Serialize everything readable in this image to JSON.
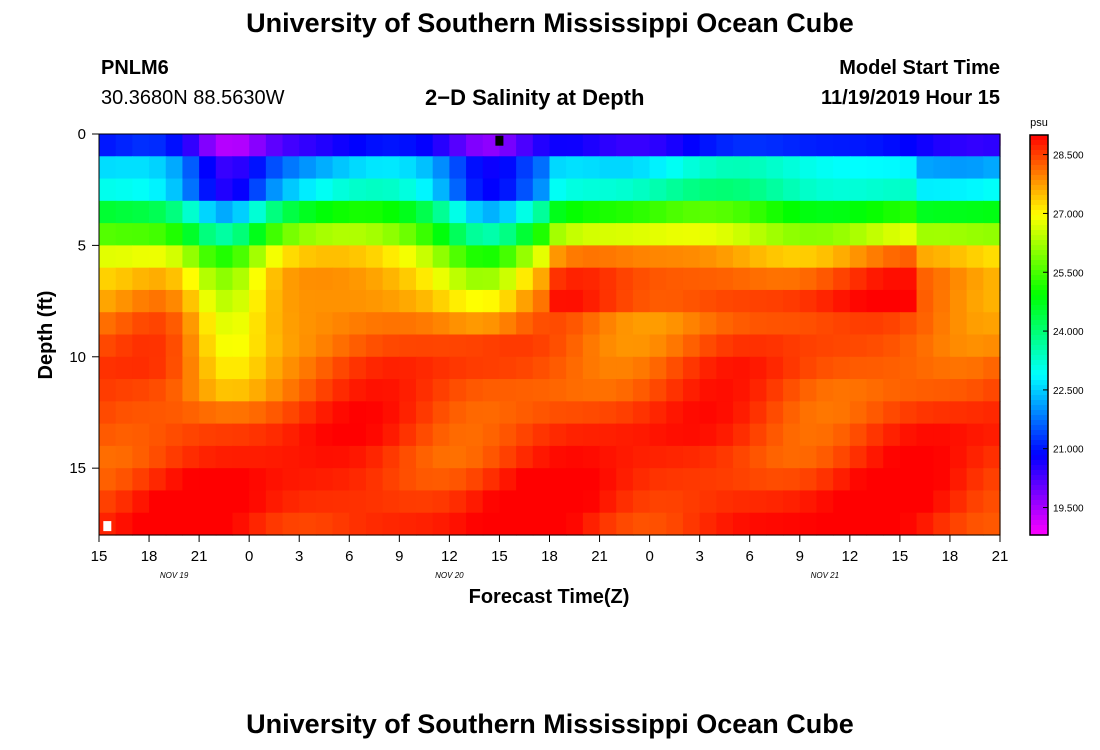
{
  "page": {
    "title": "University of Southern Mississippi Ocean Cube",
    "station_id": "PNLM6",
    "coordinates": "30.3680N 88.5630W",
    "chart_title": "2−D Salinity at Depth",
    "model_start_label": "Model Start Time",
    "model_start_value": "11/19/2019 Hour 15",
    "footer_title": "University of Southern Mississippi Ocean Cube"
  },
  "chart_data": {
    "type": "heatmap",
    "title": "2−D Salinity at Depth",
    "xlabel": "Forecast Time(Z)",
    "ylabel": "Depth (ft)",
    "x_ticks": [
      "15",
      "18",
      "21",
      "0",
      "3",
      "6",
      "9",
      "12",
      "15",
      "18",
      "21",
      "0",
      "3",
      "6",
      "9",
      "12",
      "15",
      "18",
      "21"
    ],
    "x_range_hours": [
      0,
      54
    ],
    "date_labels": [
      {
        "label": "NOV 19",
        "hour": 4.5
      },
      {
        "label": "NOV 20",
        "hour": 21
      },
      {
        "label": "NOV 21",
        "hour": 43.5
      }
    ],
    "y_ticks": [
      0,
      5,
      10,
      15
    ],
    "ylim": [
      0,
      18
    ],
    "colorbar": {
      "unit": "psu",
      "min": 18.8,
      "max": 29.0,
      "ticks": [
        "28.500",
        "27.000",
        "25.500",
        "24.000",
        "22.500",
        "21.000",
        "19.500"
      ],
      "tick_values": [
        28.5,
        27.0,
        25.5,
        24.0,
        22.5,
        21.0,
        19.5
      ]
    },
    "depth_levels_ft": [
      0,
      0.5,
      1.5,
      2.5,
      3.5,
      4.5,
      5.5,
      6.5,
      7.5,
      8.5,
      9.5,
      10.5,
      11.5,
      12.5,
      13.5,
      14.5,
      15.5,
      16.5,
      17.5
    ],
    "time_step_hours": 1,
    "surface_profile_psu": [
      19.5,
      20.6,
      22.2,
      23.3,
      24.5,
      25.7,
      26.9,
      27.4,
      27.8,
      28.0,
      28.2,
      28.3,
      28.4,
      28.5,
      28.6,
      28.7,
      28.8,
      28.9,
      28.9
    ],
    "interior_profile_psu": [
      20.1,
      20.9,
      22.4,
      22.9,
      24.6,
      25.9,
      27.2,
      27.8,
      28.0,
      28.2,
      28.3,
      28.4,
      28.4,
      28.5,
      28.6,
      28.6,
      28.7,
      28.8,
      28.8
    ],
    "freshwater_events": [
      {
        "center_hour": 7.5,
        "width_hours": 2.5,
        "depth_ft": 8,
        "strength_psu": 2.2
      },
      {
        "center_hour": 23.5,
        "width_hours": 3,
        "depth_ft": 6,
        "strength_psu": 2.0
      }
    ],
    "markers": [
      {
        "hour": 24,
        "depth_ft": 0.3,
        "color": "#000000"
      },
      {
        "hour": 0.5,
        "depth_ft": 17.6,
        "color": "#ffffff"
      }
    ]
  }
}
